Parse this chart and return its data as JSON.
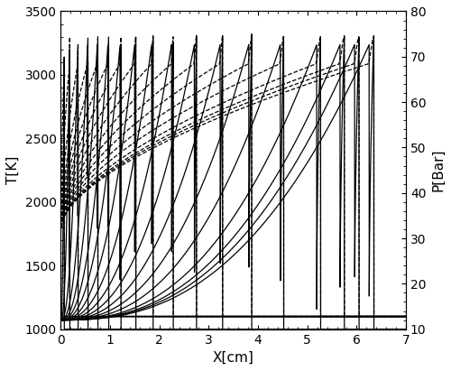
{
  "xlabel": "X[cm]",
  "ylabel_left": "T[K]",
  "ylabel_right": "P[Bar]",
  "xlim": [
    0,
    7
  ],
  "ylim_T": [
    1000,
    3500
  ],
  "ylim_P": [
    10,
    80
  ],
  "T0": 1100,
  "P0": 10,
  "T_burned": 3100,
  "T_peak": 3300,
  "P_vN": 75,
  "P_CJ": 12,
  "T_vN": 1800,
  "shock_positions": [
    0.07,
    0.18,
    0.35,
    0.55,
    0.75,
    0.97,
    1.22,
    1.52,
    1.87,
    2.28,
    2.75,
    3.28,
    3.87,
    4.52,
    5.27,
    5.75,
    6.05,
    6.35
  ],
  "color": "black",
  "linewidth_T": 0.9,
  "linewidth_P": 0.9,
  "xticks": [
    0,
    1,
    2,
    3,
    4,
    5,
    6,
    7
  ],
  "yticks_T": [
    1000,
    1500,
    2000,
    2500,
    3000,
    3500
  ],
  "yticks_P": [
    10,
    20,
    30,
    40,
    50,
    60,
    70,
    80
  ]
}
